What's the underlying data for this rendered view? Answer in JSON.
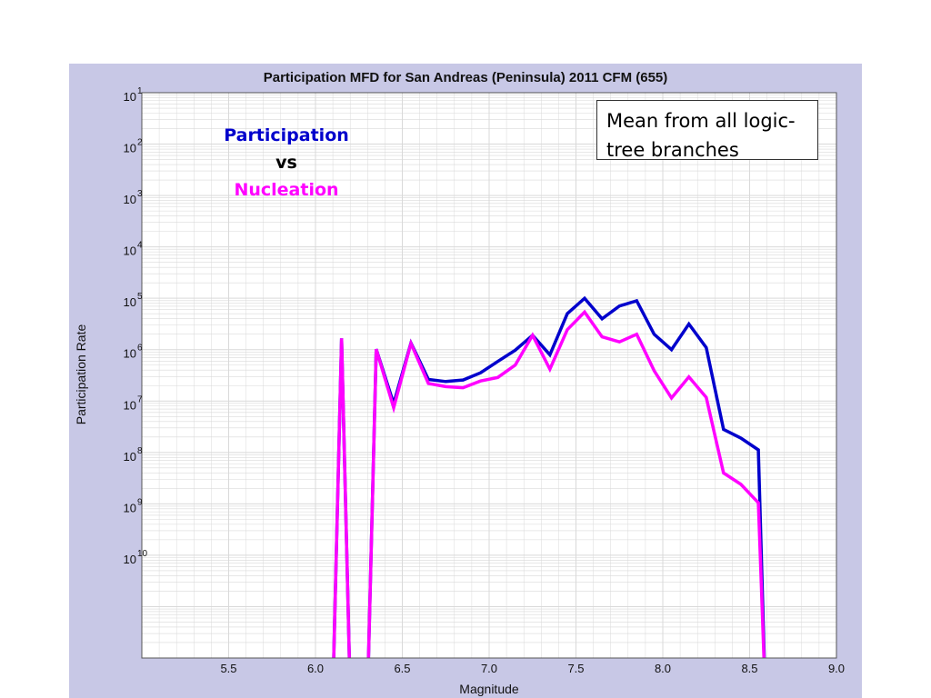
{
  "chart_data": {
    "type": "line",
    "title": "Participation MFD for San Andreas (Peninsula) 2011 CFM (655)",
    "xlabel": "Magnitude",
    "ylabel": "Participation Rate",
    "xlim": [
      5.0,
      9.0
    ],
    "ylim_log10": [
      -10,
      1
    ],
    "yscale": "log",
    "grid": true,
    "x_ticks": [
      "5.5",
      "6.0",
      "6.5",
      "7.0",
      "7.5",
      "8.0",
      "8.5",
      "9.0"
    ],
    "y_tick_labels": [
      {
        "base": "10",
        "exp": "1"
      },
      {
        "base": "10",
        "exp": "2"
      },
      {
        "base": "10",
        "exp": "3"
      },
      {
        "base": "10",
        "exp": "4"
      },
      {
        "base": "10",
        "exp": "5"
      },
      {
        "base": "10",
        "exp": "6"
      },
      {
        "base": "10",
        "exp": "7"
      },
      {
        "base": "10",
        "exp": "8"
      },
      {
        "base": "10",
        "exp": "9"
      },
      {
        "base": "10",
        "exp": "10"
      }
    ],
    "series": [
      {
        "name": "Participation",
        "color": "#0000cc",
        "x": [
          6.1,
          6.15,
          6.2,
          6.3,
          6.35,
          6.45,
          6.55,
          6.65,
          6.75,
          6.85,
          6.95,
          7.05,
          7.15,
          7.25,
          7.35,
          7.45,
          7.55,
          7.65,
          7.75,
          7.85,
          7.95,
          8.05,
          8.15,
          8.25,
          8.35,
          8.45,
          8.55,
          8.59
        ],
        "log10_y": [
          -10.0,
          -3.78,
          -10.0,
          -10.0,
          -3.99,
          -5.05,
          -3.87,
          -4.58,
          -4.62,
          -4.59,
          -4.45,
          -4.23,
          -4.01,
          -3.72,
          -4.1,
          -3.3,
          -3.0,
          -3.4,
          -3.15,
          -3.05,
          -3.7,
          -4.0,
          -3.5,
          -3.96,
          -5.55,
          -5.72,
          -5.95,
          -10.0
        ]
      },
      {
        "name": "Nucleation",
        "color": "#ff00ff",
        "x": [
          6.1,
          6.15,
          6.2,
          6.3,
          6.35,
          6.45,
          6.55,
          6.65,
          6.75,
          6.85,
          6.95,
          7.05,
          7.15,
          7.25,
          7.35,
          7.45,
          7.55,
          7.65,
          7.75,
          7.85,
          7.95,
          8.05,
          8.15,
          8.25,
          8.35,
          8.45,
          8.55,
          8.59
        ],
        "log10_y": [
          -10.0,
          -3.78,
          -10.0,
          -10.0,
          -3.99,
          -5.13,
          -3.88,
          -4.66,
          -4.72,
          -4.74,
          -4.61,
          -4.54,
          -4.3,
          -3.72,
          -4.38,
          -3.61,
          -3.27,
          -3.75,
          -3.85,
          -3.7,
          -4.41,
          -4.94,
          -4.53,
          -4.93,
          -6.4,
          -6.62,
          -6.98,
          -10.0
        ]
      }
    ]
  },
  "legend_note": {
    "line1": "Participation",
    "line1_color": "#0000cc",
    "line2": "vs",
    "line2_color": "#000000",
    "line3": "Nucleation",
    "line3_color": "#ff00ff"
  },
  "callout": {
    "line1": "Mean from all logic-",
    "line2": "tree branches"
  },
  "colors": {
    "panel_background": "#c8c8e6",
    "plot_background": "#ffffff",
    "grid": "#d9d9d9"
  }
}
